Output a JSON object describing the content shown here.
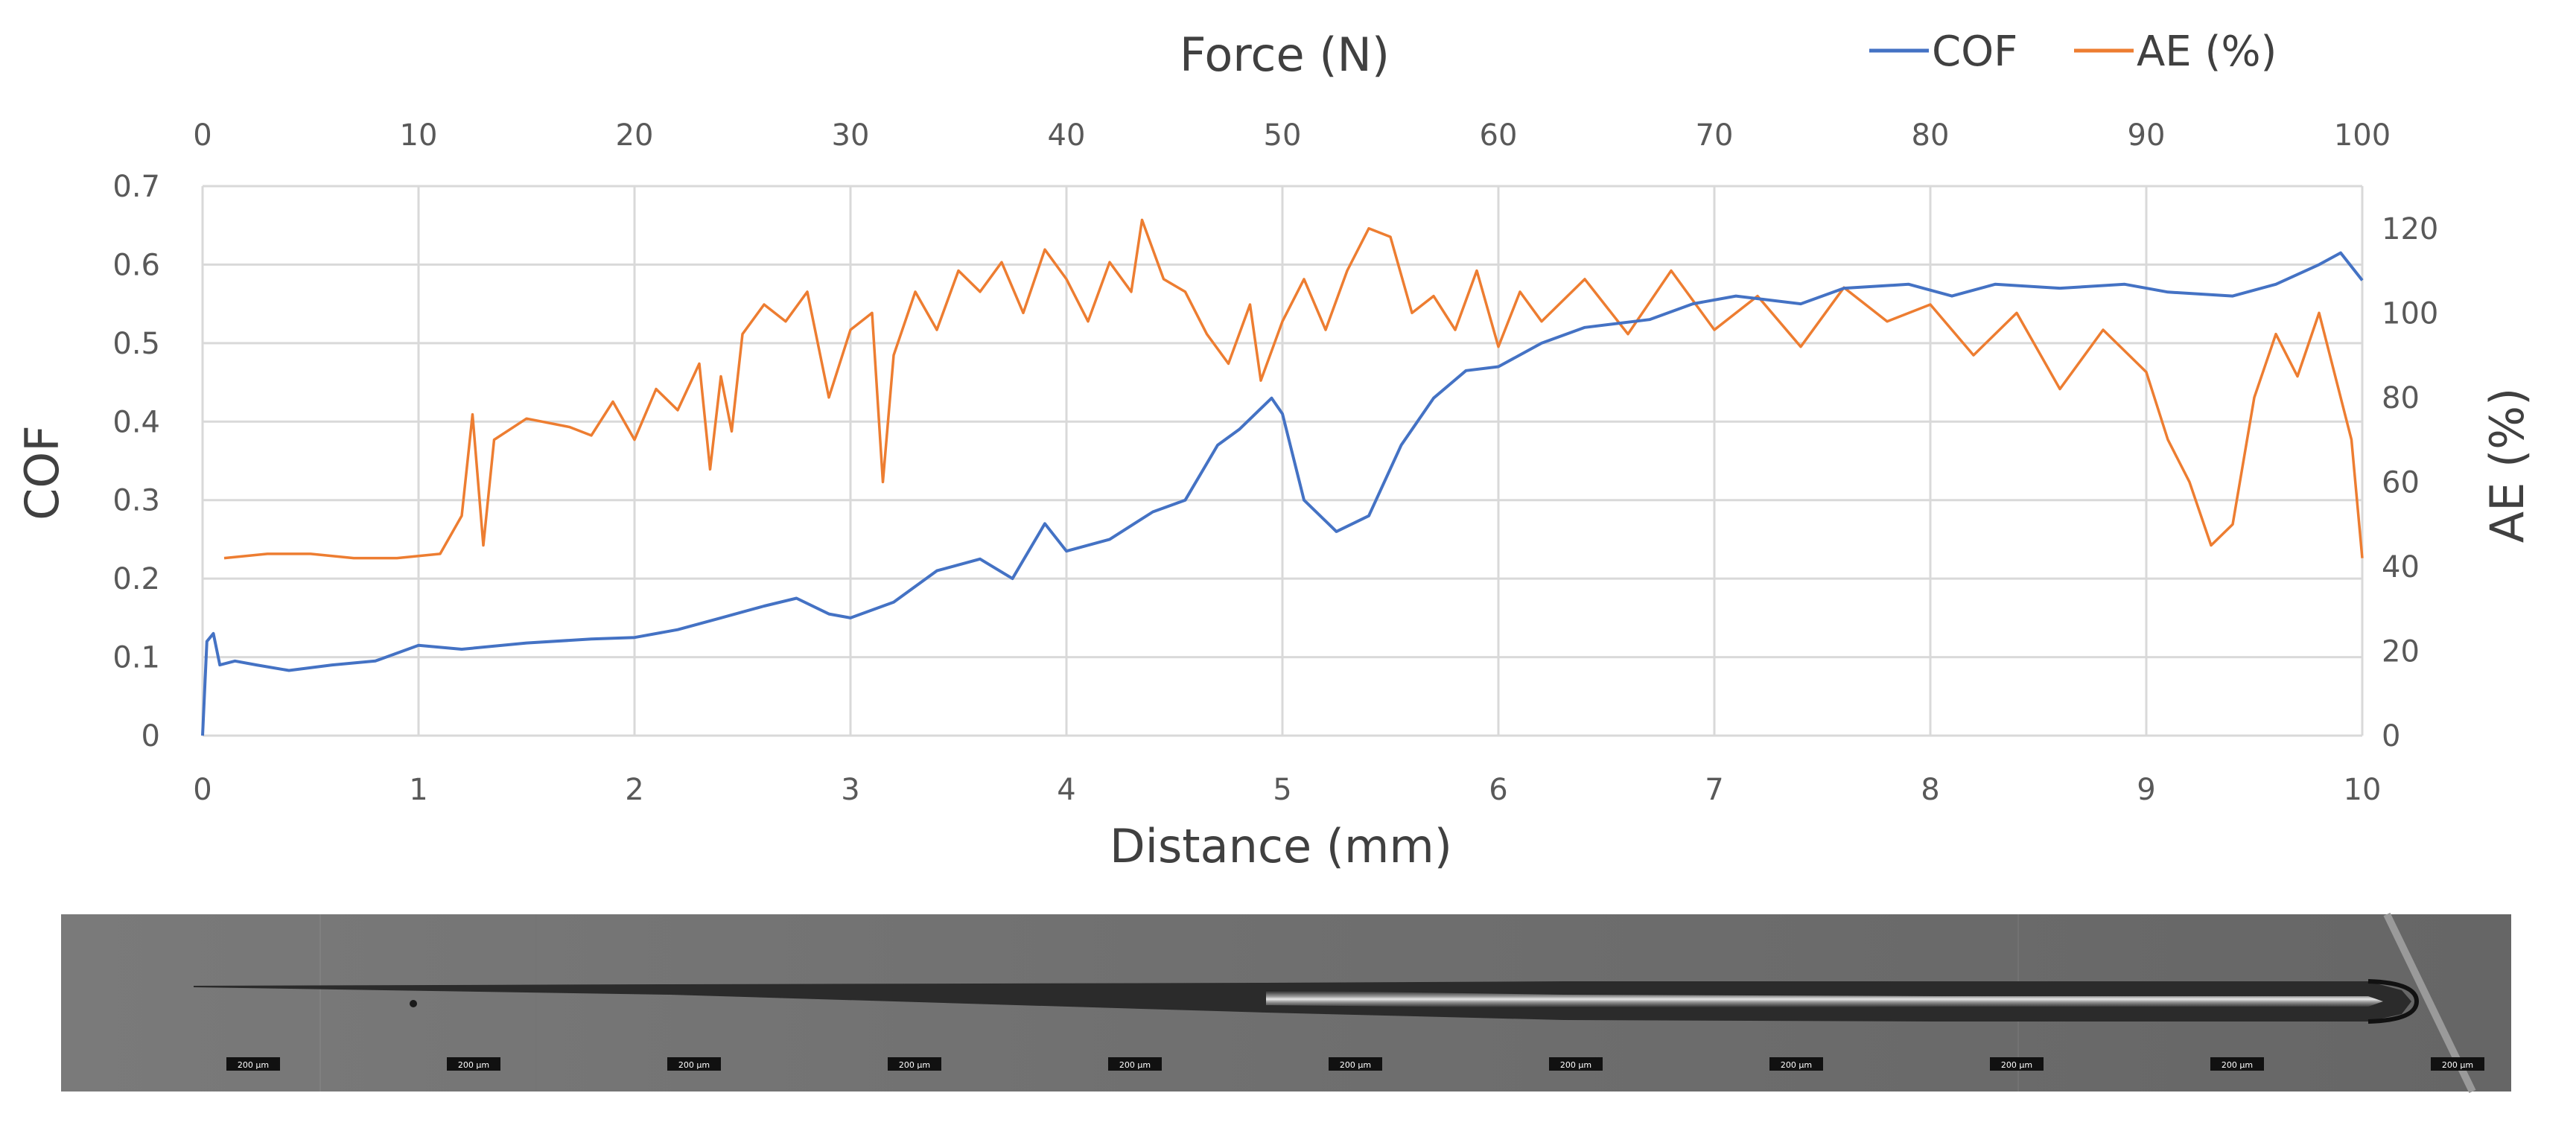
{
  "chart_data": {
    "type": "line",
    "title": "",
    "xlabel": "Distance (mm)",
    "ylabel": "COF",
    "y2label": "AE (%)",
    "x2label": "Force (N)",
    "xlim": [
      0,
      10
    ],
    "x2lim": [
      0,
      100
    ],
    "ylim": [
      0,
      0.7
    ],
    "y2lim": [
      0,
      130
    ],
    "x_ticks": [
      "0",
      "1",
      "2",
      "3",
      "4",
      "5",
      "6",
      "7",
      "8",
      "9",
      "10"
    ],
    "x2_ticks": [
      "0",
      "10",
      "20",
      "30",
      "40",
      "50",
      "60",
      "70",
      "80",
      "90",
      "100"
    ],
    "y_ticks": [
      "0",
      "0.1",
      "0.2",
      "0.3",
      "0.4",
      "0.5",
      "0.6",
      "0.7"
    ],
    "y2_ticks": [
      "0",
      "20",
      "40",
      "60",
      "80",
      "100",
      "120"
    ],
    "grid": true,
    "legend_position": "top-right",
    "series": [
      {
        "name": "COF",
        "color": "#4472c4",
        "axis": "left",
        "points": [
          [
            0,
            0
          ],
          [
            0.02,
            0.12
          ],
          [
            0.05,
            0.13
          ],
          [
            0.08,
            0.09
          ],
          [
            0.15,
            0.095
          ],
          [
            0.25,
            0.09
          ],
          [
            0.4,
            0.083
          ],
          [
            0.6,
            0.09
          ],
          [
            0.8,
            0.095
          ],
          [
            1.0,
            0.115
          ],
          [
            1.2,
            0.11
          ],
          [
            1.5,
            0.118
          ],
          [
            1.8,
            0.123
          ],
          [
            2.0,
            0.125
          ],
          [
            2.2,
            0.135
          ],
          [
            2.4,
            0.15
          ],
          [
            2.6,
            0.165
          ],
          [
            2.75,
            0.175
          ],
          [
            2.9,
            0.155
          ],
          [
            3.0,
            0.15
          ],
          [
            3.2,
            0.17
          ],
          [
            3.4,
            0.21
          ],
          [
            3.6,
            0.225
          ],
          [
            3.75,
            0.2
          ],
          [
            3.9,
            0.27
          ],
          [
            4.0,
            0.235
          ],
          [
            4.2,
            0.25
          ],
          [
            4.4,
            0.285
          ],
          [
            4.55,
            0.3
          ],
          [
            4.7,
            0.37
          ],
          [
            4.8,
            0.39
          ],
          [
            4.95,
            0.43
          ],
          [
            5.0,
            0.41
          ],
          [
            5.1,
            0.3
          ],
          [
            5.25,
            0.26
          ],
          [
            5.4,
            0.28
          ],
          [
            5.55,
            0.37
          ],
          [
            5.7,
            0.43
          ],
          [
            5.85,
            0.465
          ],
          [
            6.0,
            0.47
          ],
          [
            6.2,
            0.5
          ],
          [
            6.4,
            0.52
          ],
          [
            6.7,
            0.53
          ],
          [
            6.9,
            0.55
          ],
          [
            7.1,
            0.56
          ],
          [
            7.4,
            0.55
          ],
          [
            7.6,
            0.57
          ],
          [
            7.9,
            0.575
          ],
          [
            8.1,
            0.56
          ],
          [
            8.3,
            0.575
          ],
          [
            8.6,
            0.57
          ],
          [
            8.9,
            0.575
          ],
          [
            9.1,
            0.565
          ],
          [
            9.4,
            0.56
          ],
          [
            9.6,
            0.575
          ],
          [
            9.8,
            0.6
          ],
          [
            9.9,
            0.615
          ],
          [
            10.0,
            0.58
          ]
        ]
      },
      {
        "name": "AE (%)",
        "color": "#ed7d31",
        "axis": "right",
        "points": [
          [
            0.1,
            42
          ],
          [
            0.3,
            43
          ],
          [
            0.5,
            43
          ],
          [
            0.7,
            42
          ],
          [
            0.9,
            42
          ],
          [
            1.1,
            43
          ],
          [
            1.2,
            52
          ],
          [
            1.25,
            76
          ],
          [
            1.3,
            45
          ],
          [
            1.35,
            70
          ],
          [
            1.5,
            75
          ],
          [
            1.7,
            73
          ],
          [
            1.8,
            71
          ],
          [
            1.9,
            79
          ],
          [
            2.0,
            70
          ],
          [
            2.1,
            82
          ],
          [
            2.2,
            77
          ],
          [
            2.3,
            88
          ],
          [
            2.35,
            63
          ],
          [
            2.4,
            85
          ],
          [
            2.45,
            72
          ],
          [
            2.5,
            95
          ],
          [
            2.6,
            102
          ],
          [
            2.7,
            98
          ],
          [
            2.8,
            105
          ],
          [
            2.9,
            80
          ],
          [
            3.0,
            96
          ],
          [
            3.1,
            100
          ],
          [
            3.15,
            60
          ],
          [
            3.2,
            90
          ],
          [
            3.3,
            105
          ],
          [
            3.4,
            96
          ],
          [
            3.5,
            110
          ],
          [
            3.6,
            105
          ],
          [
            3.7,
            112
          ],
          [
            3.8,
            100
          ],
          [
            3.9,
            115
          ],
          [
            4.0,
            108
          ],
          [
            4.1,
            98
          ],
          [
            4.2,
            112
          ],
          [
            4.3,
            105
          ],
          [
            4.35,
            122
          ],
          [
            4.45,
            108
          ],
          [
            4.55,
            105
          ],
          [
            4.65,
            95
          ],
          [
            4.75,
            88
          ],
          [
            4.85,
            102
          ],
          [
            4.9,
            84
          ],
          [
            5.0,
            98
          ],
          [
            5.1,
            108
          ],
          [
            5.2,
            96
          ],
          [
            5.3,
            110
          ],
          [
            5.4,
            120
          ],
          [
            5.5,
            118
          ],
          [
            5.6,
            100
          ],
          [
            5.7,
            104
          ],
          [
            5.8,
            96
          ],
          [
            5.9,
            110
          ],
          [
            6.0,
            92
          ],
          [
            6.1,
            105
          ],
          [
            6.2,
            98
          ],
          [
            6.4,
            108
          ],
          [
            6.6,
            95
          ],
          [
            6.8,
            110
          ],
          [
            7.0,
            96
          ],
          [
            7.2,
            104
          ],
          [
            7.4,
            92
          ],
          [
            7.6,
            106
          ],
          [
            7.8,
            98
          ],
          [
            8.0,
            102
          ],
          [
            8.2,
            90
          ],
          [
            8.4,
            100
          ],
          [
            8.6,
            82
          ],
          [
            8.8,
            96
          ],
          [
            9.0,
            86
          ],
          [
            9.1,
            70
          ],
          [
            9.2,
            60
          ],
          [
            9.3,
            45
          ],
          [
            9.4,
            50
          ],
          [
            9.5,
            80
          ],
          [
            9.6,
            95
          ],
          [
            9.7,
            85
          ],
          [
            9.8,
            100
          ],
          [
            9.85,
            90
          ],
          [
            9.95,
            70
          ],
          [
            10.0,
            42
          ]
        ]
      }
    ]
  },
  "micrograph": {
    "scale_label": "200 µm",
    "scale_count": 11
  }
}
